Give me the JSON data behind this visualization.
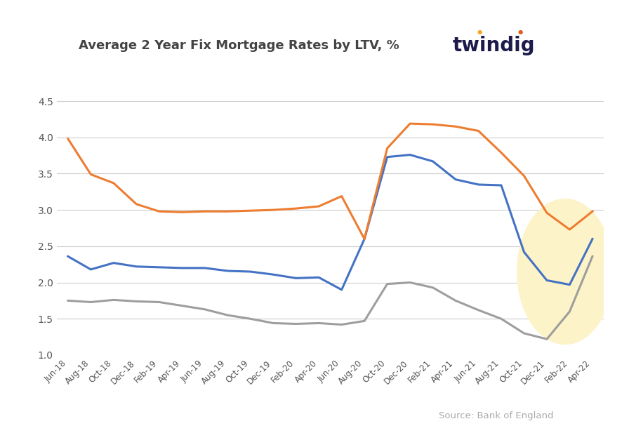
{
  "title_left": "Average 2 Year Fix Mortgage Rates by LTV, %",
  "title_right": "twindig",
  "source": "Source: Bank of England",
  "ylim": [
    1.0,
    4.7
  ],
  "yticks": [
    1.0,
    1.5,
    2.0,
    2.5,
    3.0,
    3.5,
    4.0,
    4.5
  ],
  "x_labels": [
    "Jun-18",
    "Aug-18",
    "Oct-18",
    "Dec-18",
    "Feb-19",
    "Apr-19",
    "Jun-19",
    "Aug-19",
    "Oct-19",
    "Dec-19",
    "Feb-20",
    "Apr-20",
    "Jun-20",
    "Aug-20",
    "Oct-20",
    "Dec-20",
    "Feb-21",
    "Apr-21",
    "Jun-21",
    "Aug-21",
    "Oct-21",
    "Dec-21",
    "Feb-22",
    "Apr-22"
  ],
  "ltv_90": [
    2.36,
    2.18,
    2.27,
    2.22,
    2.21,
    2.2,
    2.2,
    2.16,
    2.15,
    2.11,
    2.06,
    2.07,
    1.9,
    2.6,
    3.73,
    3.76,
    3.67,
    3.42,
    3.35,
    3.34,
    2.42,
    2.03,
    1.97,
    2.6
  ],
  "ltv_75": [
    1.75,
    1.73,
    1.76,
    1.74,
    1.73,
    1.68,
    1.63,
    1.55,
    1.5,
    1.44,
    1.43,
    1.44,
    1.42,
    1.47,
    1.98,
    2.0,
    1.93,
    1.75,
    1.62,
    1.5,
    1.3,
    1.22,
    1.6,
    2.36
  ],
  "ltv_95": [
    3.98,
    3.49,
    3.37,
    3.08,
    2.98,
    2.97,
    2.98,
    2.98,
    2.99,
    3.0,
    3.02,
    3.05,
    3.19,
    2.6,
    3.85,
    4.19,
    4.18,
    4.15,
    4.09,
    3.79,
    3.47,
    2.96,
    2.73,
    2.98
  ],
  "color_90": "#4472C4",
  "color_75": "#9E9E9E",
  "color_95": "#ED7D31",
  "color_twindig_base": "#1e1b4b",
  "color_twindig_dot1": "#f5a623",
  "color_twindig_dot2": "#e05c1a",
  "ellipse_color": "#fdf3c8",
  "bg_color": "#ffffff"
}
